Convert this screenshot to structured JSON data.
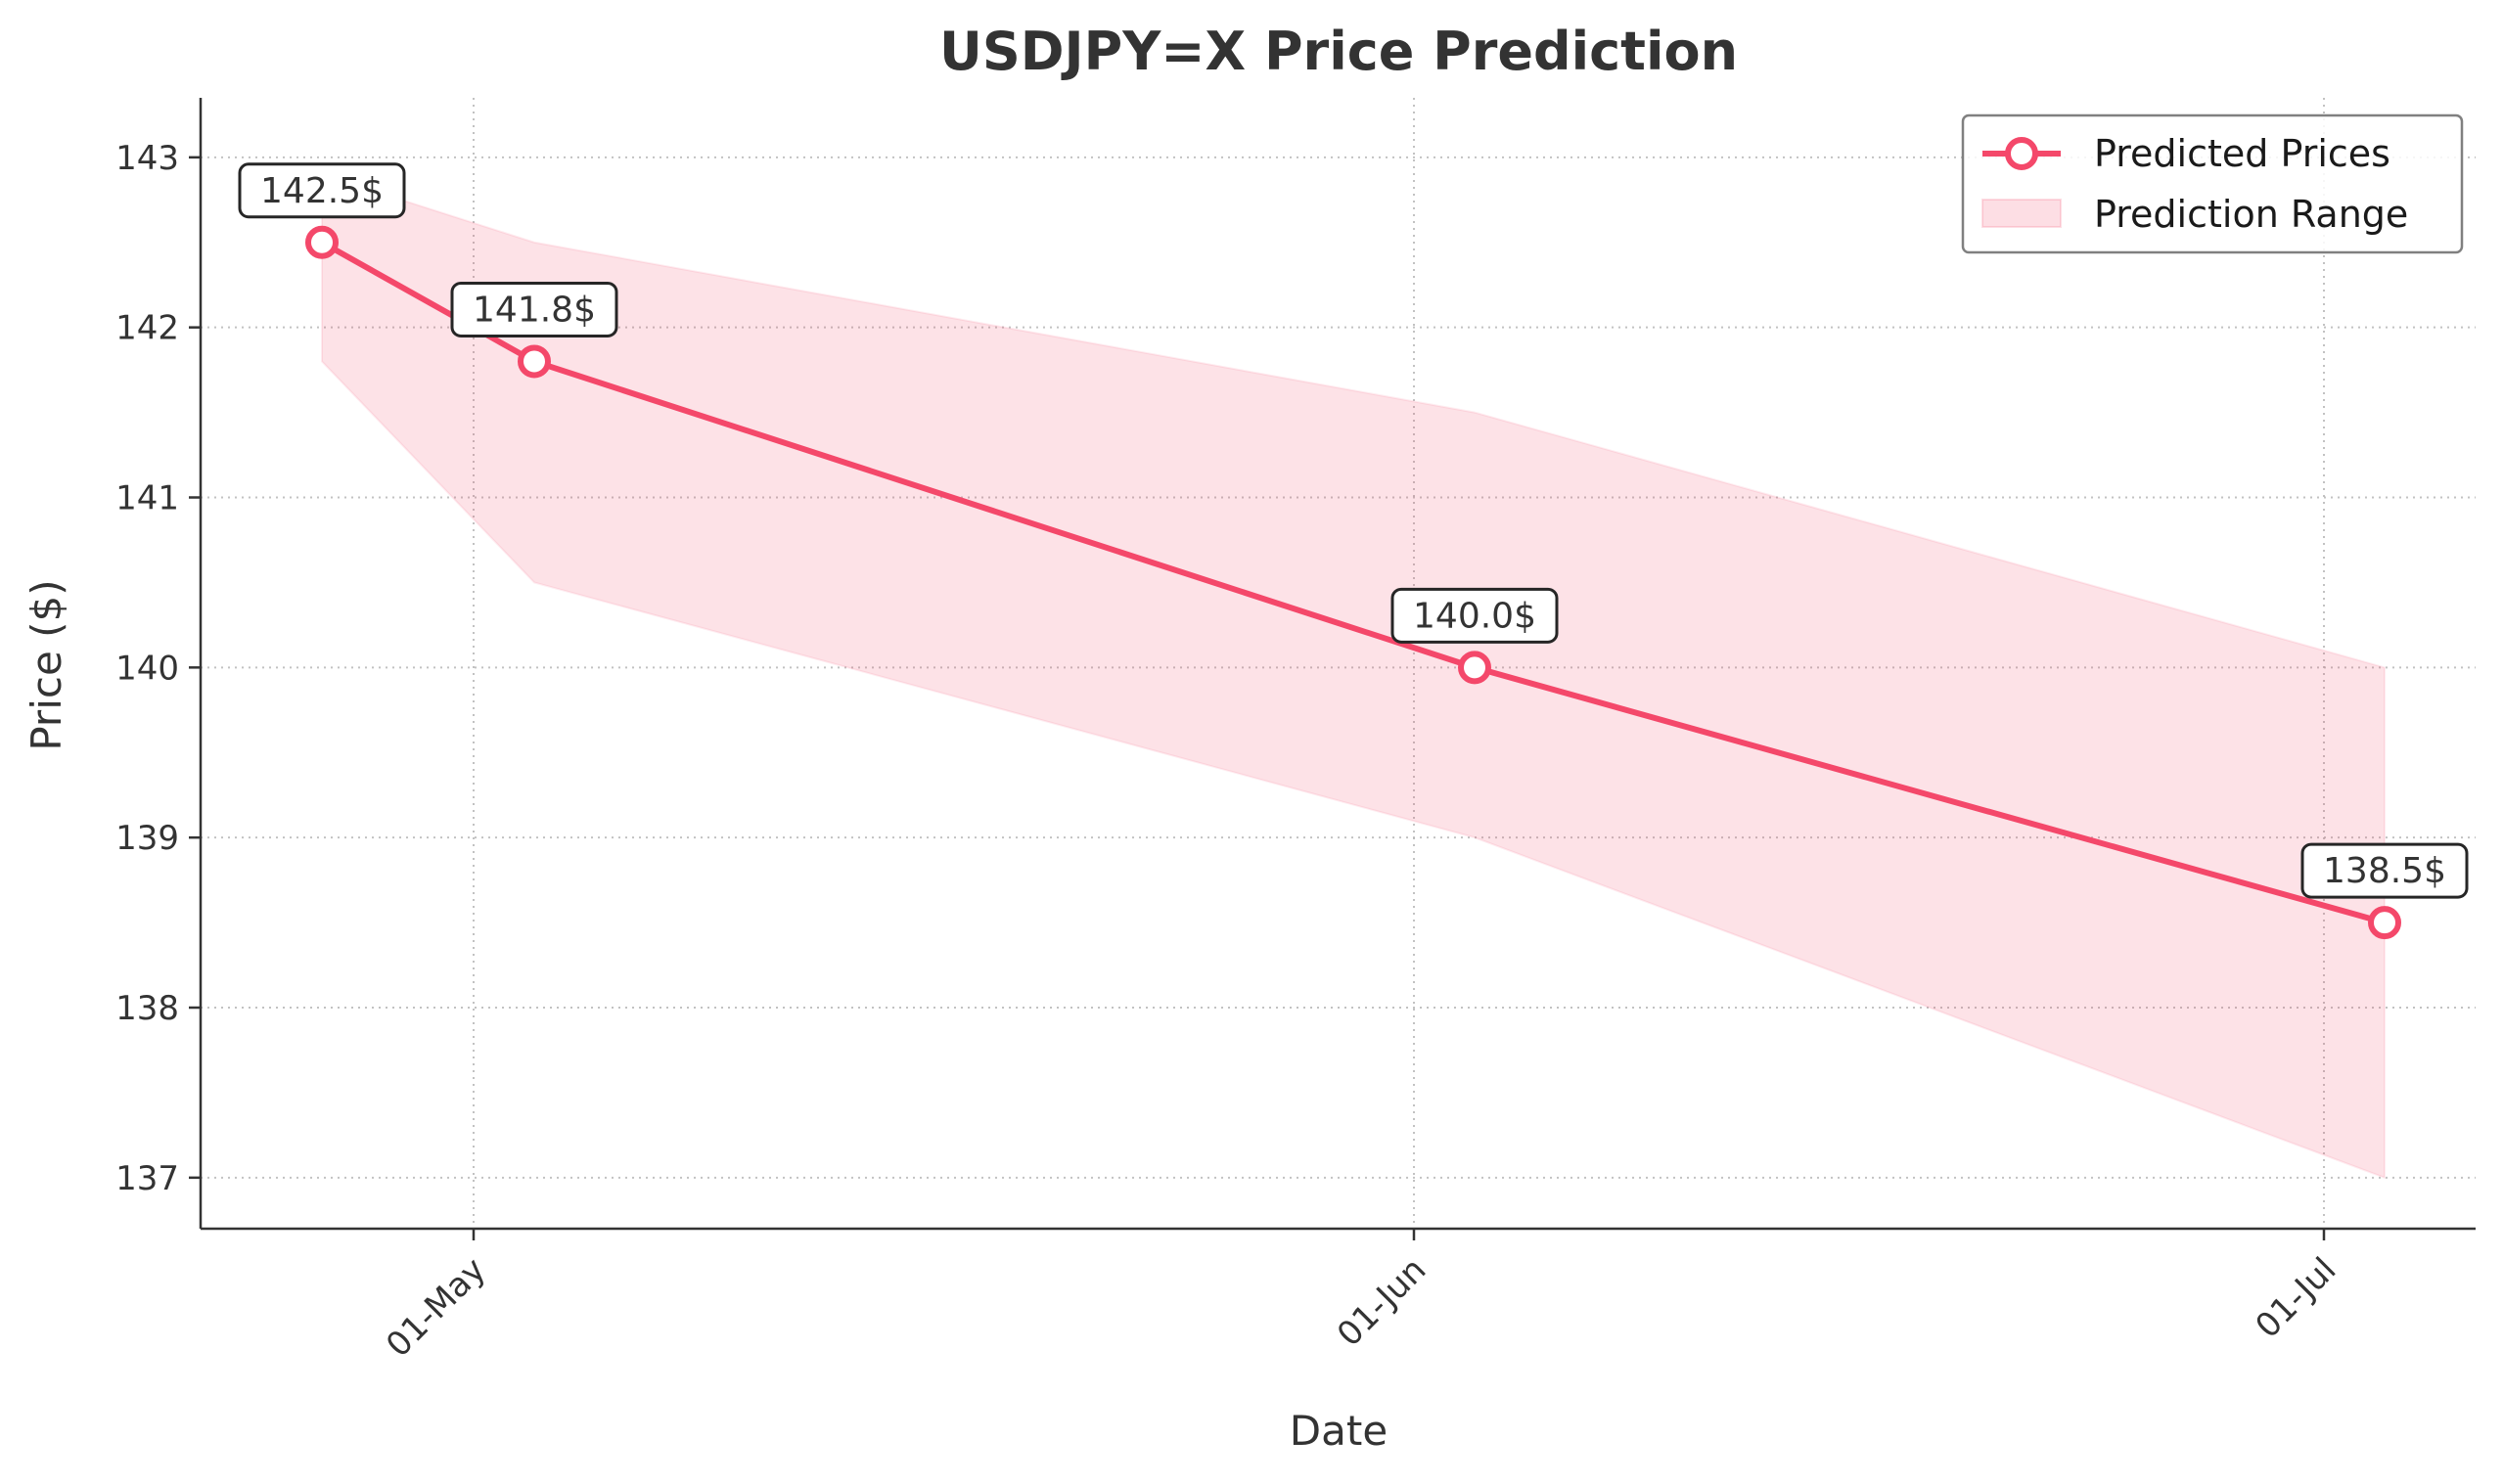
{
  "chart_data": {
    "type": "line",
    "title": "USDJPY=X Price Prediction",
    "xlabel": "Date",
    "ylabel": "Price ($)",
    "x_ticks": [
      {
        "date": "2025-05-01",
        "label": "01-May"
      },
      {
        "date": "2025-06-01",
        "label": "01-Jun"
      },
      {
        "date": "2025-07-01",
        "label": "01-Jul"
      }
    ],
    "xlim": [
      "2025-04-22",
      "2025-07-06"
    ],
    "y_ticks": [
      137,
      138,
      139,
      140,
      141,
      142,
      143
    ],
    "ylim": [
      136.7,
      143.35
    ],
    "grid": true,
    "legend_position": "top-right",
    "series": [
      {
        "name": "Predicted Prices",
        "color": "#f4486a",
        "marker": "circle-open",
        "points": [
          {
            "x": "2025-04-26",
            "y": 142.5,
            "label": "142.5$"
          },
          {
            "x": "2025-05-03",
            "y": 141.8,
            "label": "141.8$"
          },
          {
            "x": "2025-06-03",
            "y": 140.0,
            "label": "140.0$"
          },
          {
            "x": "2025-07-03",
            "y": 138.5,
            "label": "138.5$"
          }
        ]
      }
    ],
    "range": {
      "name": "Prediction Range",
      "color": "#f4486a",
      "points": [
        {
          "x": "2025-04-26",
          "low": 141.8,
          "high": 142.9
        },
        {
          "x": "2025-05-03",
          "low": 140.5,
          "high": 142.5
        },
        {
          "x": "2025-06-03",
          "low": 139.0,
          "high": 141.5
        },
        {
          "x": "2025-07-03",
          "low": 137.0,
          "high": 140.0
        }
      ]
    }
  }
}
